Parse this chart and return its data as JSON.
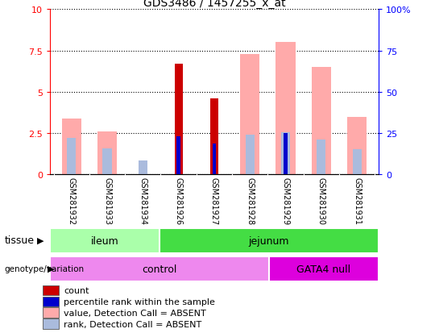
{
  "title": "GDS3486 / 1457255_x_at",
  "samples": [
    "GSM281932",
    "GSM281933",
    "GSM281934",
    "GSM281926",
    "GSM281927",
    "GSM281928",
    "GSM281929",
    "GSM281930",
    "GSM281931"
  ],
  "count": [
    0,
    0,
    0,
    6.7,
    4.6,
    0,
    0,
    0,
    0
  ],
  "percentile_rank": [
    0,
    0,
    0,
    2.3,
    1.85,
    0,
    2.5,
    0,
    0
  ],
  "value_absent": [
    3.4,
    2.6,
    0,
    0,
    0,
    7.3,
    8.0,
    6.5,
    3.5
  ],
  "rank_absent": [
    2.2,
    1.6,
    0.85,
    0,
    0,
    2.4,
    2.55,
    2.1,
    1.55
  ],
  "tissue_groups": [
    {
      "label": "ileum",
      "start": 0,
      "end": 3,
      "color": "#aaffaa"
    },
    {
      "label": "jejunum",
      "start": 3,
      "end": 9,
      "color": "#44dd44"
    }
  ],
  "genotype_groups": [
    {
      "label": "control",
      "start": 0,
      "end": 6,
      "color": "#ee88ee"
    },
    {
      "label": "GATA4 null",
      "start": 6,
      "end": 9,
      "color": "#dd00dd"
    }
  ],
  "ylim_left": [
    0,
    10
  ],
  "ylim_right": [
    0,
    100
  ],
  "yticks_left": [
    0,
    2.5,
    5,
    7.5,
    10
  ],
  "ytick_labels_left": [
    "0",
    "2.5",
    "5",
    "7.5",
    "10"
  ],
  "ytick_labels_right": [
    "0",
    "25",
    "50",
    "75",
    "100%"
  ],
  "color_count": "#cc0000",
  "color_percentile": "#0000cc",
  "color_value_absent": "#ffaaaa",
  "color_rank_absent": "#aabbdd",
  "legend_items": [
    {
      "label": "count",
      "color": "#cc0000"
    },
    {
      "label": "percentile rank within the sample",
      "color": "#0000cc"
    },
    {
      "label": "value, Detection Call = ABSENT",
      "color": "#ffaaaa"
    },
    {
      "label": "rank, Detection Call = ABSENT",
      "color": "#aabbdd"
    }
  ]
}
